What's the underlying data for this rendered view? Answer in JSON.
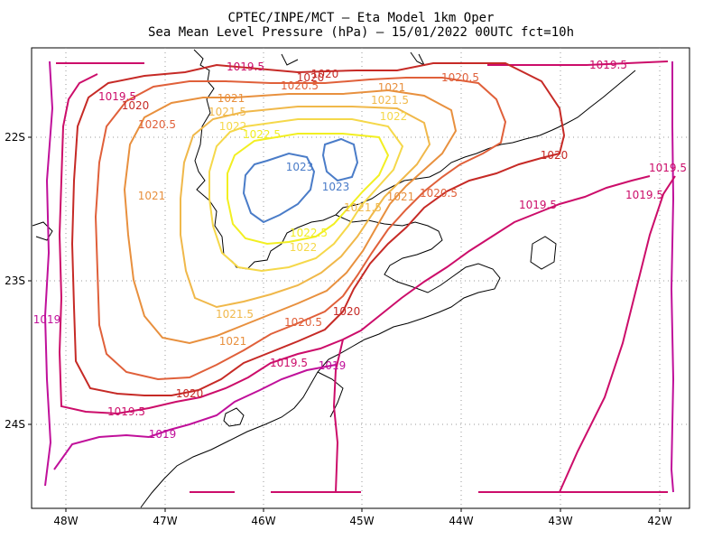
{
  "title_line1": "CPTEC/INPE/MCT –  Eta Model 1km Oper",
  "title_line2": "Sea Mean Level Pressure (hPa) – 15/01/2022 00UTC fct=10h",
  "lon_labels": [
    "48W",
    "47W",
    "46W",
    "45W",
    "44W",
    "43W",
    "42W"
  ],
  "lat_labels": [
    "22S",
    "23S",
    "24S"
  ],
  "contour_labels": [
    "1019.5",
    "1020",
    "1020.5",
    "1021",
    "1021.5",
    "1022",
    "1022.5",
    "1023",
    "1023",
    "1022.5",
    "1022",
    "1021.5",
    "1021",
    "1020.5",
    "1020",
    "1019.5",
    "1019",
    "1019",
    "1020.5",
    "1021",
    "1021.5",
    "1022",
    "1020",
    "1019.5",
    "1019.5",
    "1020",
    "1021",
    "1021.5",
    "1020.5",
    "1021",
    "1020",
    "1019.5",
    "1019.5",
    "1019",
    "1020.5",
    "1019.5",
    "1020",
    "1019.5",
    "1019"
  ],
  "colors": {
    "c1019": "#c0109a",
    "c1019_5": "#cc0d6a",
    "c1020": "#c62a26",
    "c1020_5": "#e0603a",
    "c1021": "#e8903e",
    "c1021_5": "#f0b84a",
    "c1022": "#f5d84a",
    "c1022_5": "#f2ef22",
    "c1023": "#4a7cc8"
  }
}
